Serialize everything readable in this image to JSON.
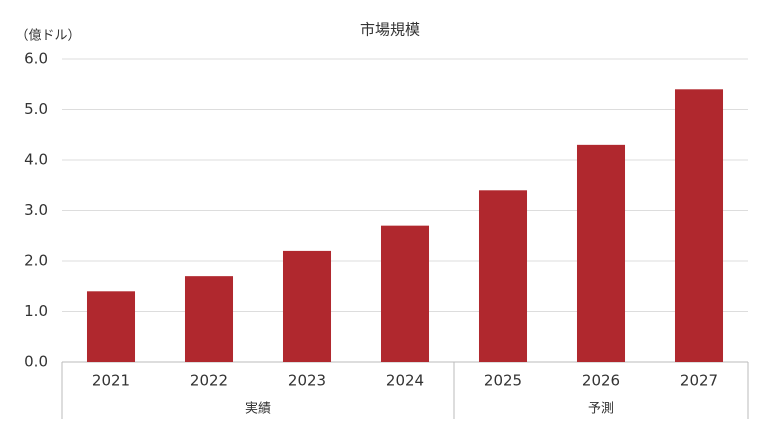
{
  "chart_data": {
    "type": "bar",
    "title": "市場規模",
    "y_label": "（億ドル）",
    "categories": [
      "2021",
      "2022",
      "2023",
      "2024",
      "2025",
      "2026",
      "2027"
    ],
    "values": [
      1.4,
      1.7,
      2.2,
      2.7,
      3.4,
      4.3,
      5.4
    ],
    "color": "#b0282e",
    "groups": [
      {
        "label": "実績",
        "categories": [
          "2021",
          "2022",
          "2023",
          "2024"
        ]
      },
      {
        "label": "予測",
        "categories": [
          "2025",
          "2026",
          "2027"
        ]
      }
    ],
    "ylim": [
      0,
      6
    ],
    "yticks": [
      {
        "value": 0,
        "label": "0.0"
      },
      {
        "value": 1,
        "label": "1.0"
      },
      {
        "value": 2,
        "label": "2.0"
      },
      {
        "value": 3,
        "label": "3.0"
      },
      {
        "value": 4,
        "label": "4.0"
      },
      {
        "value": 5,
        "label": "5.0"
      },
      {
        "value": 6,
        "label": "6.0"
      }
    ],
    "grid": true
  }
}
